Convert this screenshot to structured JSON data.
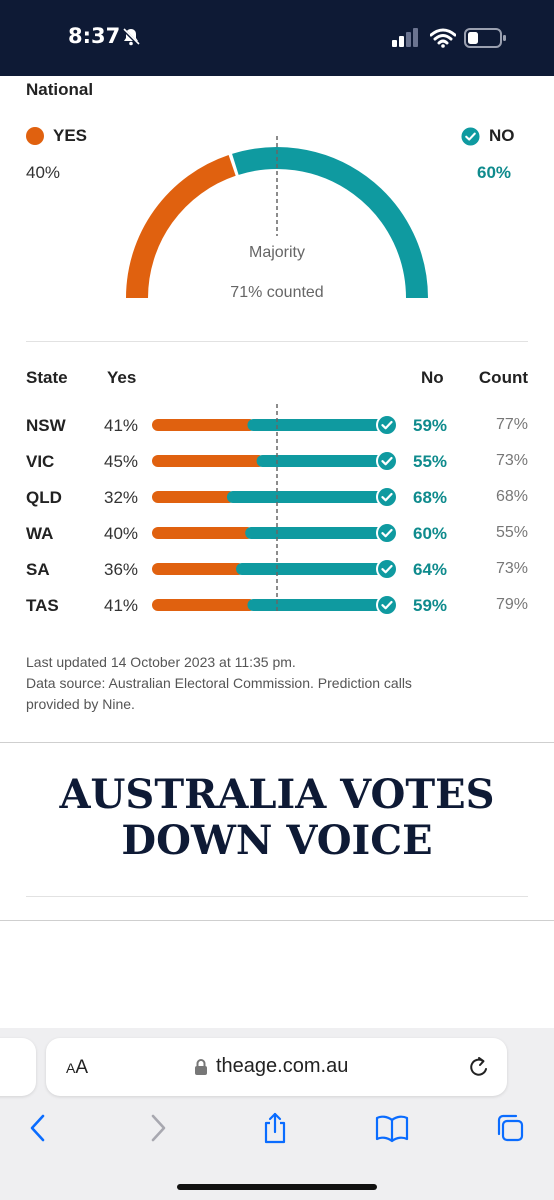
{
  "status_bar": {
    "time": "8:37"
  },
  "results": {
    "section_title": "National",
    "yes_label": "YES",
    "no_label": "NO",
    "yes_pct": "40%",
    "no_pct": "60%",
    "yes_value": 40,
    "no_value": 60,
    "majority_label": "Majority",
    "counted_label": "71% counted",
    "colors": {
      "yes": "#e0610f",
      "no": "#0f9aa0",
      "no_text": "#0f8b8d"
    }
  },
  "table": {
    "headers": {
      "state": "State",
      "yes": "Yes",
      "no": "No",
      "count": "Count"
    },
    "rows": [
      {
        "state": "NSW",
        "yes": "41%",
        "no": "59%",
        "count": "77%",
        "yes_value": 41
      },
      {
        "state": "VIC",
        "yes": "45%",
        "no": "55%",
        "count": "73%",
        "yes_value": 45
      },
      {
        "state": "QLD",
        "yes": "32%",
        "no": "68%",
        "count": "68%",
        "yes_value": 32
      },
      {
        "state": "WA",
        "yes": "40%",
        "no": "60%",
        "count": "55%",
        "yes_value": 40
      },
      {
        "state": "SA",
        "yes": "36%",
        "no": "64%",
        "count": "73%",
        "yes_value": 36
      },
      {
        "state": "TAS",
        "yes": "41%",
        "no": "59%",
        "count": "79%",
        "yes_value": 41
      }
    ]
  },
  "footer": {
    "updated": "Last updated 14 October 2023 at 11:35 pm.",
    "source_line1": "Data source: Australian Electoral Commission. Prediction calls",
    "source_line2": "provided by Nine."
  },
  "headline": {
    "line1": "AUSTRALIA VOTES",
    "line2": "DOWN VOICE"
  },
  "browser": {
    "text_size_small": "A",
    "text_size_large": "A",
    "url": "theage.com.au",
    "toolbar_icons": [
      "back-icon",
      "forward-icon",
      "share-icon",
      "bookmarks-icon",
      "tabs-icon"
    ]
  }
}
